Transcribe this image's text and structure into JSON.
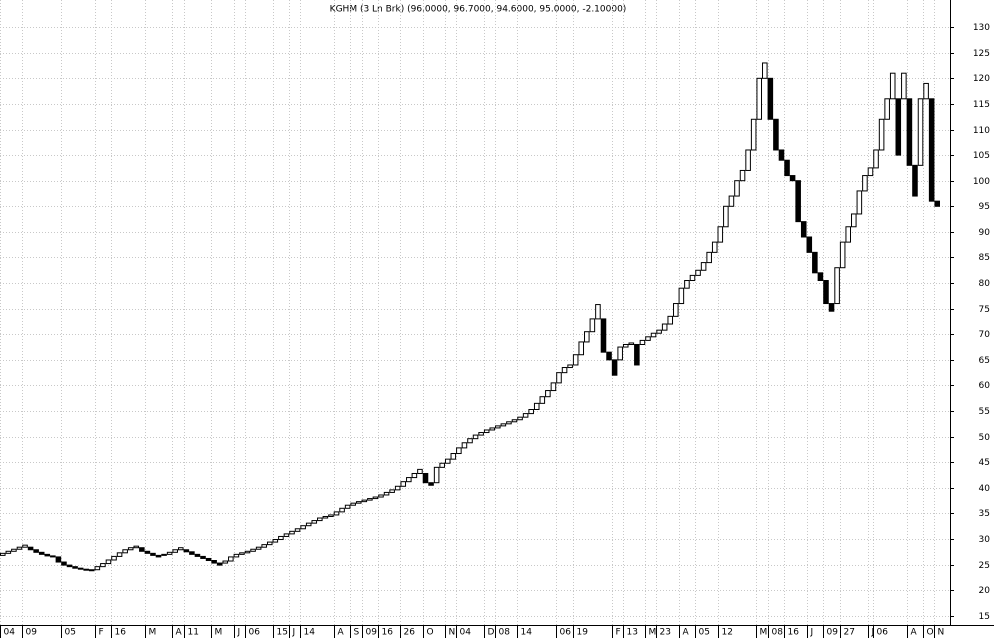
{
  "chart_data": {
    "type": "three-line-break",
    "title": "KGHM (3 Ln Brk)  (96.0000, 96.7000, 94.6000, 95.0000, -2.10000)",
    "first_open": 26.8,
    "values": [
      27.2,
      27.6,
      28.0,
      28.4,
      28.8,
      27.9,
      27.4,
      27.0,
      26.7,
      26.5,
      25.5,
      24.9,
      24.6,
      24.3,
      24.1,
      24.0,
      23.8,
      24.6,
      25.2,
      25.9,
      26.6,
      27.3,
      27.9,
      28.3,
      28.6,
      27.6,
      27.2,
      26.8,
      26.5,
      27.0,
      27.4,
      27.9,
      28.3,
      27.5,
      27.0,
      26.6,
      26.2,
      25.8,
      25.3,
      24.9,
      25.7,
      26.5,
      27.0,
      27.3,
      27.6,
      28.0,
      28.4,
      28.9,
      29.4,
      29.9,
      30.5,
      31.0,
      31.5,
      32.0,
      32.6,
      33.1,
      33.6,
      34.1,
      34.4,
      34.7,
      35.3,
      36.0,
      36.6,
      37.0,
      37.3,
      37.6,
      37.9,
      38.2,
      38.6,
      39.1,
      39.6,
      40.3,
      41.2,
      42.0,
      42.8,
      43.6,
      41.0,
      40.5,
      44.0,
      44.8,
      45.6,
      46.7,
      47.8,
      48.8,
      49.6,
      50.3,
      50.8,
      51.3,
      51.7,
      52.1,
      52.5,
      52.9,
      53.3,
      53.8,
      54.5,
      55.3,
      56.5,
      57.8,
      59.0,
      60.5,
      62.5,
      63.5,
      64.0,
      66.0,
      68.5,
      70.5,
      73.0,
      75.8,
      66.5,
      65.0,
      62.0,
      67.5,
      68.0,
      68.3,
      64.0,
      68.8,
      69.5,
      70.2,
      70.8,
      72.0,
      73.5,
      76.0,
      79.0,
      80.5,
      81.5,
      82.5,
      84.0,
      86.0,
      88.0,
      91.0,
      95.0,
      97.0,
      100.0,
      102.0,
      106.0,
      112.0,
      120.0,
      123.0,
      112.0,
      106.0,
      104.0,
      101.0,
      100.0,
      92.0,
      89.0,
      86.0,
      82.0,
      80.5,
      76.0,
      74.5,
      83.0,
      88.0,
      91.0,
      93.5,
      98.0,
      101.0,
      102.5,
      106.0,
      112.0,
      116.0,
      121.0,
      105.0,
      121.0,
      103.0,
      97.0,
      116.0,
      119.0,
      96.0,
      95.0
    ],
    "categories": [
      "04",
      null,
      null,
      null,
      "09",
      null,
      null,
      null,
      null,
      null,
      null,
      "05",
      null,
      null,
      null,
      null,
      null,
      "F",
      null,
      null,
      "16",
      null,
      null,
      null,
      null,
      null,
      "M",
      null,
      null,
      null,
      null,
      "A",
      null,
      "11",
      null,
      null,
      null,
      null,
      "M",
      null,
      null,
      null,
      "J",
      null,
      "06",
      null,
      null,
      null,
      null,
      "15",
      null,
      null,
      "J",
      null,
      "14",
      null,
      null,
      null,
      null,
      null,
      "A",
      null,
      null,
      "S",
      null,
      "09",
      null,
      null,
      "16",
      null,
      null,
      null,
      "26",
      null,
      null,
      null,
      "O",
      null,
      null,
      null,
      "N",
      null,
      "04",
      null,
      null,
      null,
      null,
      "D",
      null,
      "08",
      null,
      null,
      null,
      "14",
      null,
      null,
      null,
      null,
      null,
      null,
      "06",
      null,
      null,
      "19",
      null,
      null,
      null,
      null,
      null,
      null,
      "F",
      null,
      "13",
      null,
      null,
      null,
      "M",
      null,
      "23",
      null,
      null,
      null,
      "A",
      null,
      null,
      "05",
      null,
      null,
      null,
      "12",
      null,
      null,
      null,
      null,
      null,
      null,
      "M",
      null,
      "08",
      null,
      null,
      "16",
      null,
      null,
      null,
      "J",
      null,
      null,
      "09",
      null,
      null,
      "27",
      null,
      null,
      null,
      null,
      "J",
      "06",
      null,
      null,
      null,
      null,
      null,
      "A",
      null,
      null,
      "O",
      null,
      "N"
    ],
    "up_color": "#ffffff",
    "down_color": "#000000",
    "ylim": [
      13.2,
      135.3
    ],
    "yticks": [
      15,
      20,
      25,
      30,
      35,
      40,
      45,
      50,
      55,
      60,
      65,
      70,
      75,
      80,
      85,
      90,
      95,
      100,
      105,
      110,
      115,
      120,
      125,
      130
    ],
    "grid": true
  }
}
